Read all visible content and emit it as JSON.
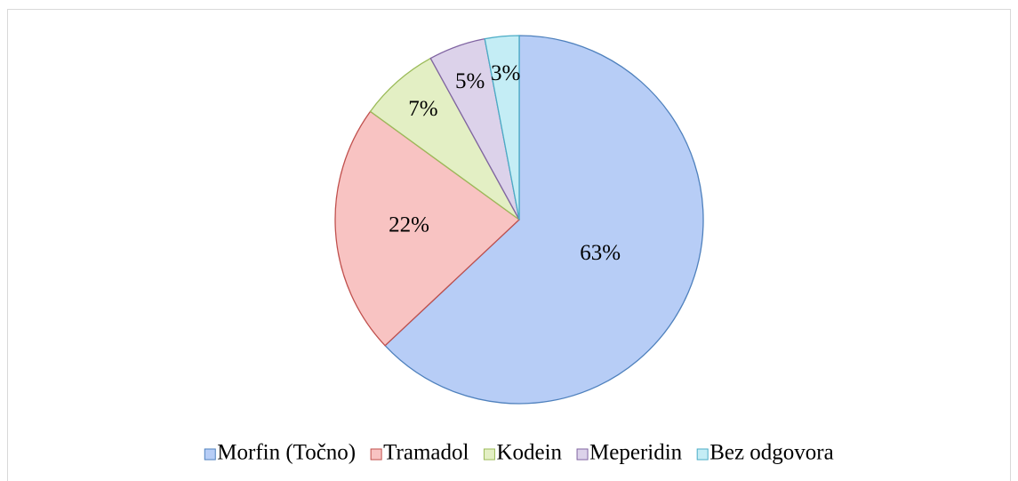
{
  "chart_data": {
    "type": "pie",
    "categories": [
      "Morfin (Točno)",
      "Tramadol",
      "Kodein",
      "Meperidin",
      "Bez odgovora"
    ],
    "values": [
      63,
      22,
      7,
      5,
      3
    ],
    "value_labels": [
      "63%",
      "22%",
      "7%",
      "5%",
      "3%"
    ],
    "colors": [
      "#b7cdf6",
      "#f8c3c2",
      "#e3efc4",
      "#dcd2ea",
      "#c4edf5"
    ],
    "edge_colors": [
      "#4f81bd",
      "#c0504d",
      "#9bbb59",
      "#8064a2",
      "#4bacc6"
    ],
    "legend": "bottom"
  }
}
